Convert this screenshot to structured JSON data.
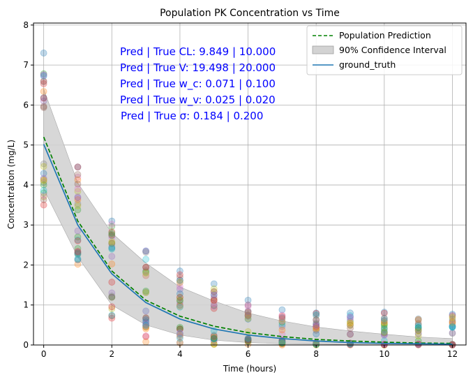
{
  "chart_data": {
    "type": "line",
    "title": "Population PK Concentration vs Time",
    "xlabel": "Time (hours)",
    "ylabel": "Concentration (mg/L)",
    "xlim": [
      -0.3,
      12.4
    ],
    "ylim": [
      0,
      8.05
    ],
    "xticks": [
      0,
      2,
      4,
      6,
      8,
      10,
      12
    ],
    "yticks": [
      0,
      1,
      2,
      3,
      4,
      5,
      6,
      7,
      8
    ],
    "grid": true,
    "legend_position": "top-right",
    "x": [
      0,
      1,
      2,
      3,
      4,
      5,
      6,
      7,
      8,
      9,
      10,
      11,
      12
    ],
    "series": [
      {
        "name": "Population Prediction",
        "style": "dashed",
        "color": "#008000",
        "values": [
          5.2,
          3.1,
          1.85,
          1.12,
          0.72,
          0.47,
          0.31,
          0.21,
          0.14,
          0.1,
          0.07,
          0.05,
          0.04
        ]
      },
      {
        "name": "ground_truth",
        "style": "solid",
        "color": "#1f77b4",
        "values": [
          5.02,
          3.0,
          1.78,
          1.06,
          0.65,
          0.4,
          0.25,
          0.16,
          0.1,
          0.06,
          0.04,
          0.03,
          0.02
        ]
      }
    ],
    "confidence_interval": {
      "name": "90% Confidence Interval",
      "color": "#d3d3d3",
      "lower": [
        3.9,
        2.2,
        1.0,
        0.5,
        0.25,
        0.12,
        0.06,
        0.03,
        0.02,
        0.01,
        0.0,
        0.0,
        0.0
      ],
      "upper": [
        6.4,
        4.05,
        2.8,
        2.05,
        1.45,
        1.1,
        0.8,
        0.6,
        0.45,
        0.35,
        0.27,
        0.2,
        0.16
      ]
    },
    "scatter_ranges": {
      "x": [
        0,
        1,
        2,
        3,
        4,
        5,
        6,
        7,
        8,
        9,
        10,
        11,
        12
      ],
      "min": [
        3.5,
        2.02,
        0.67,
        0.08,
        0.05,
        0.02,
        0.02,
        0.0,
        0.0,
        0.0,
        0.0,
        0.0,
        0.0
      ],
      "max": [
        7.3,
        4.45,
        3.1,
        2.35,
        1.85,
        1.53,
        1.12,
        0.88,
        0.8,
        0.8,
        0.82,
        0.65,
        0.77
      ],
      "points_per_time": 30
    },
    "scatter_colors": [
      "#1f77b4",
      "#ff7f0e",
      "#2ca02c",
      "#d62728",
      "#9467bd",
      "#8c564b",
      "#e377c2",
      "#7f7f7f",
      "#bcbd22",
      "#17becf"
    ],
    "annotations": [
      "Pred | True CL: 9.849 | 10.000",
      "Pred | True V:  19.498 | 20.000",
      "Pred | True w_c:  0.071 | 0.100",
      "Pred | True w_v:  0.025 | 0.020",
      "Pred | True σ:  0.184 | 0.200"
    ],
    "annotation_color": "#0000ff"
  }
}
